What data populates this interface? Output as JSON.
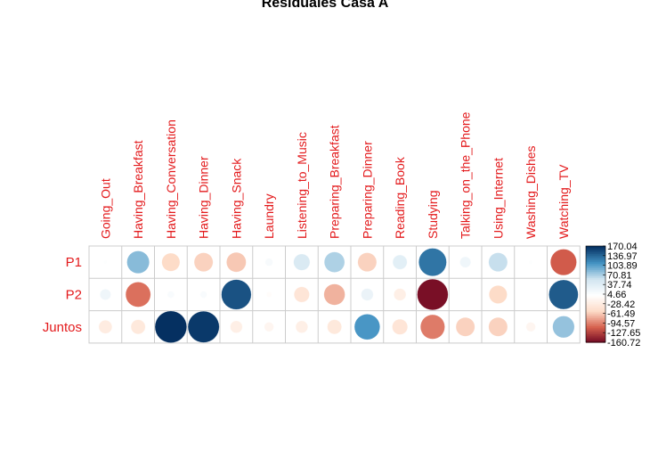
{
  "chart_data": {
    "type": "heatmap",
    "title": "Residuales Casa A",
    "columns": [
      "Going_Out",
      "Having_Breakfast",
      "Having_Conversation",
      "Having_Dinner",
      "Having_Snack",
      "Laundry",
      "Listening_to_Music",
      "Preparing_Breakfast",
      "Preparing_Dinner",
      "Reading_Book",
      "Studying",
      "Talking_on_the_Phone",
      "Using_Internet",
      "Washing_Dishes",
      "Watching_TV"
    ],
    "rows": [
      "P1",
      "P2",
      "Juntos"
    ],
    "values": [
      [
        2,
        85,
        -55,
        -60,
        -65,
        10,
        45,
        70,
        -60,
        35,
        130,
        20,
        60,
        3,
        -115
      ],
      [
        20,
        -105,
        8,
        8,
        150,
        -5,
        -40,
        -75,
        25,
        -25,
        -160.72,
        0,
        -55,
        0,
        145
      ],
      [
        -30,
        -35,
        170.04,
        165,
        -25,
        -15,
        -25,
        -35,
        110,
        -40,
        -100,
        -60,
        -60,
        -15,
        80
      ]
    ],
    "legend": {
      "ticks": [
        "170.04",
        "136.97",
        "103.89",
        "70.81",
        "37.74",
        "4.66",
        "-28.42",
        "-61.49",
        "-94.57",
        "-127.65",
        "-160.72"
      ],
      "min": -160.72,
      "max": 170.04,
      "position": "right"
    },
    "colors": {
      "neg_dark": "#67001f",
      "neg_mid": "#d6604d",
      "neg_light": "#fddbc7",
      "neutral": "#ffffff",
      "pos_light": "#d1e5f0",
      "pos_mid": "#4393c3",
      "pos_dark": "#053061",
      "label": "#e31a1c",
      "grid": "#cccccc"
    }
  }
}
